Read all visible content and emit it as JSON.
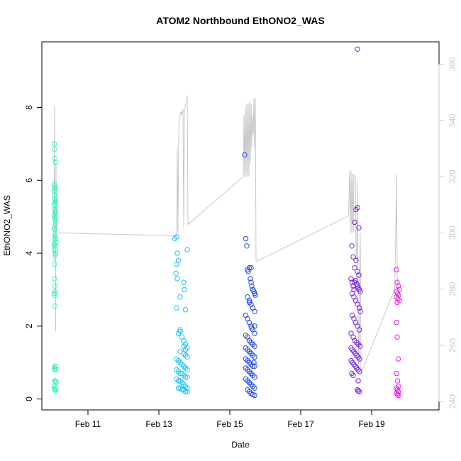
{
  "chart_data": {
    "type": "scatter",
    "title": "ATOM2 Northbound EthONO2_WAS",
    "xlabel": "Date",
    "ylabel": "EthONO2_WAS",
    "x_ticks": [
      "Feb 11",
      "Feb 13",
      "Feb 15",
      "Feb 17",
      "Feb 19"
    ],
    "x_tick_days": [
      11,
      13,
      15,
      17,
      19
    ],
    "xlim": [
      9.7,
      20.9
    ],
    "y_ticks": [
      0,
      2,
      4,
      6,
      8
    ],
    "ylim": [
      -0.3,
      9.8
    ],
    "y2_ticks": [
      240,
      260,
      280,
      300,
      320,
      340,
      360
    ],
    "y2lim": [
      237,
      368
    ],
    "colors": {
      "g1": "#37f5c0",
      "g2": "#1ec0f5",
      "g3": "#1e46f0",
      "g4": "#7a1ee6",
      "g5": "#e61ee6",
      "line": "#c8c8c8",
      "axis": "#000000",
      "axis_right": "#c8c8c8"
    },
    "series": [
      {
        "color_key": "g1",
        "x": [
          10.05,
          10.06,
          10.07,
          10.08,
          10.05,
          10.06,
          10.07,
          10.08,
          10.05,
          10.06,
          10.07,
          10.08,
          10.09,
          10.05,
          10.06,
          10.07,
          10.08,
          10.09,
          10.05,
          10.06,
          10.07,
          10.08,
          10.09,
          10.05,
          10.06,
          10.07,
          10.08,
          10.09,
          10.1,
          10.05,
          10.06,
          10.07,
          10.08,
          10.09,
          10.05,
          10.06,
          10.07,
          10.08,
          10.05,
          10.06,
          10.07,
          10.08,
          10.09,
          10.05,
          10.07,
          10.08,
          10.06,
          10.09,
          10.1,
          10.05,
          10.06,
          10.07,
          10.08,
          10.09
        ],
        "y": [
          7.0,
          6.85,
          6.6,
          6.5,
          5.9,
          5.85,
          5.8,
          5.75,
          5.7,
          5.6,
          5.5,
          5.45,
          5.4,
          5.35,
          5.3,
          5.2,
          5.15,
          5.1,
          5.05,
          5.0,
          4.95,
          4.9,
          4.8,
          4.7,
          4.65,
          4.5,
          4.45,
          4.4,
          4.3,
          4.25,
          4.2,
          4.1,
          4.0,
          3.95,
          3.7,
          3.3,
          3.1,
          2.95,
          2.9,
          2.85,
          2.55,
          0.9,
          0.88,
          0.85,
          0.82,
          0.8,
          0.5,
          0.48,
          0.45,
          0.35,
          0.3,
          0.27,
          0.25,
          0.22
        ]
      },
      {
        "color_key": "g2",
        "x": [
          13.45,
          13.5,
          13.52,
          13.55,
          13.5,
          13.48,
          13.52,
          13.6,
          13.7,
          13.72,
          13.75,
          13.8,
          13.5,
          13.55,
          13.6,
          13.65,
          13.7,
          13.75,
          13.8,
          13.6,
          13.7,
          13.75,
          13.8,
          13.5,
          13.55,
          13.6,
          13.65,
          13.7,
          13.75,
          13.8,
          13.5,
          13.55,
          13.6,
          13.65,
          13.7,
          13.75,
          13.8,
          13.5,
          13.55,
          13.6,
          13.65,
          13.7,
          13.75,
          13.8,
          13.55,
          13.6,
          13.65,
          13.7,
          13.75,
          13.8,
          13.6,
          13.7,
          13.75
        ],
        "y": [
          4.4,
          4.45,
          4.0,
          3.8,
          3.7,
          3.45,
          3.3,
          2.8,
          3.2,
          3.0,
          2.45,
          4.1,
          2.5,
          1.8,
          1.9,
          1.7,
          1.6,
          1.5,
          1.4,
          1.3,
          1.25,
          1.2,
          1.15,
          1.1,
          1.05,
          1.0,
          0.95,
          0.9,
          0.85,
          0.8,
          0.8,
          0.75,
          0.7,
          0.7,
          0.65,
          0.6,
          0.6,
          0.55,
          0.5,
          0.5,
          0.45,
          0.4,
          0.35,
          0.3,
          0.3,
          0.3,
          0.25,
          0.25,
          0.2,
          0.2,
          1.85,
          1.45,
          1.35
        ]
      },
      {
        "color_key": "g3",
        "x": [
          15.42,
          15.45,
          15.48,
          15.5,
          15.52,
          15.55,
          15.58,
          15.6,
          15.62,
          15.65,
          15.68,
          15.7,
          15.72,
          15.5,
          15.55,
          15.6,
          15.65,
          15.7,
          15.45,
          15.5,
          15.55,
          15.6,
          15.65,
          15.7,
          15.45,
          15.5,
          15.55,
          15.6,
          15.65,
          15.7,
          15.45,
          15.5,
          15.55,
          15.6,
          15.65,
          15.7,
          15.45,
          15.5,
          15.55,
          15.6,
          15.65,
          15.7,
          15.45,
          15.5,
          15.55,
          15.6,
          15.65,
          15.7,
          15.45,
          15.5,
          15.55,
          15.6,
          15.65,
          15.7,
          15.5,
          15.55,
          15.6,
          15.65,
          15.7,
          15.6,
          15.65,
          15.7,
          15.55,
          15.62,
          15.68
        ],
        "y": [
          6.7,
          4.4,
          4.2,
          3.55,
          3.5,
          3.6,
          3.3,
          3.2,
          3.1,
          3.0,
          2.95,
          2.9,
          2.85,
          2.8,
          2.7,
          2.6,
          2.5,
          2.4,
          2.3,
          2.2,
          2.1,
          2.0,
          1.9,
          1.8,
          1.75,
          1.7,
          1.6,
          1.55,
          1.5,
          1.45,
          1.4,
          1.35,
          1.3,
          1.25,
          1.2,
          1.15,
          1.1,
          1.05,
          1.0,
          0.95,
          0.9,
          0.9,
          0.85,
          0.8,
          0.75,
          0.7,
          0.65,
          0.6,
          0.55,
          0.5,
          0.45,
          0.4,
          0.35,
          0.3,
          0.25,
          0.2,
          0.15,
          0.12,
          0.1,
          3.6,
          3.0,
          2.0,
          2.65,
          1.95,
          1.0
        ]
      },
      {
        "color_key": "g4",
        "x": [
          18.42,
          18.45,
          18.48,
          18.5,
          18.52,
          18.55,
          18.58,
          18.6,
          18.62,
          18.65,
          18.68,
          18.45,
          18.5,
          18.55,
          18.6,
          18.65,
          18.68,
          18.45,
          18.5,
          18.55,
          18.6,
          18.65,
          18.42,
          18.48,
          18.52,
          18.58,
          18.62,
          18.68,
          18.42,
          18.46,
          18.5,
          18.54,
          18.58,
          18.62,
          18.66,
          18.42,
          18.46,
          18.5,
          18.54,
          18.58,
          18.62,
          18.66,
          18.44,
          18.48,
          18.52,
          18.56,
          18.6,
          18.64,
          18.44,
          18.48,
          18.52,
          18.56,
          18.6,
          18.64,
          18.6,
          18.62,
          18.65,
          18.6,
          18.62
        ],
        "y": [
          3.3,
          3.2,
          3.1,
          3.0,
          3.2,
          3.25,
          3.15,
          3.1,
          3.05,
          3.0,
          2.95,
          2.9,
          2.8,
          2.7,
          2.6,
          2.5,
          2.4,
          2.3,
          2.2,
          2.1,
          2.0,
          1.9,
          1.8,
          1.7,
          1.6,
          1.55,
          1.5,
          1.45,
          1.4,
          1.35,
          1.3,
          1.25,
          1.2,
          1.15,
          1.1,
          1.05,
          1.0,
          0.95,
          0.9,
          0.85,
          0.8,
          0.75,
          0.7,
          0.65,
          4.85,
          5.2,
          5.25,
          4.7,
          4.2,
          3.9,
          3.6,
          3.8,
          3.5,
          3.4,
          0.25,
          0.22,
          0.2,
          9.6,
          0.5
        ]
      },
      {
        "color_key": "g5",
        "x": [
          19.7,
          19.72,
          19.75,
          19.78,
          19.7,
          19.73,
          19.76,
          19.7,
          19.74,
          19.78,
          19.7,
          19.72,
          19.75,
          19.7,
          19.73,
          19.76,
          19.7,
          19.72,
          19.75,
          19.7,
          19.73,
          19.76,
          19.72
        ],
        "y": [
          3.55,
          3.2,
          3.1,
          3.0,
          2.95,
          2.9,
          2.85,
          2.8,
          2.75,
          2.7,
          2.1,
          1.7,
          1.1,
          0.7,
          0.5,
          0.35,
          0.3,
          0.25,
          0.2,
          0.15,
          0.12,
          0.1,
          2.65
        ]
      }
    ],
    "line_series": {
      "color_key": "line",
      "x": [
        10.02,
        10.04,
        10.06,
        10.07,
        10.08,
        10.09,
        10.1,
        10.11,
        10.12,
        10.14,
        10.16,
        10.18,
        10.2,
        13.5,
        13.52,
        13.54,
        13.56,
        13.58,
        13.6,
        13.62,
        13.64,
        13.66,
        13.68,
        13.7,
        13.72,
        13.74,
        13.76,
        13.78,
        13.8,
        13.82,
        15.38,
        15.4,
        15.42,
        15.44,
        15.46,
        15.48,
        15.5,
        15.52,
        15.54,
        15.56,
        15.58,
        15.6,
        15.62,
        15.64,
        15.66,
        15.68,
        15.7,
        15.72,
        15.74,
        15.76,
        15.78,
        18.35,
        18.38,
        18.4,
        18.42,
        18.44,
        18.46,
        18.48,
        18.5,
        18.52,
        18.54,
        18.56,
        18.58,
        18.6,
        18.62,
        18.64,
        18.66,
        18.68,
        18.7,
        19.65,
        19.68,
        19.7,
        19.72,
        19.74,
        19.76
      ],
      "y": [
        300,
        290,
        345,
        300,
        300,
        265,
        325,
        300,
        300,
        300,
        300,
        300,
        300,
        299,
        330,
        300,
        335,
        340,
        342,
        343,
        342,
        343,
        344,
        302,
        344,
        345,
        346,
        347,
        349,
        303,
        320,
        342,
        320,
        345,
        320,
        346,
        320,
        346,
        320,
        347,
        325,
        346,
        330,
        342,
        335,
        348,
        330,
        348,
        290,
        290,
        290,
        306,
        322,
        300,
        322,
        300,
        321,
        300,
        321,
        320,
        320,
        290,
        290,
        318,
        270,
        250,
        285,
        300,
        250,
        280,
        300,
        321,
        285,
        280,
        280
      ]
    }
  }
}
